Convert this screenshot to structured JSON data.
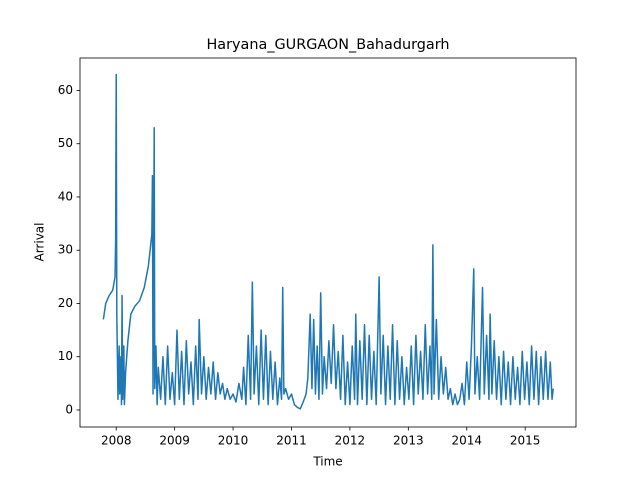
{
  "chart_data": {
    "type": "line",
    "title": "Haryana_GURGAON_Bahadurgarh",
    "x_label": "Time",
    "y_label": "Arrival",
    "series": [
      {
        "name": "Arrival",
        "color": "#1f77b4",
        "x": [
          2007.78,
          2007.82,
          2007.88,
          2007.94,
          2007.98,
          2007.99,
          2008.0,
          2008.01,
          2008.03,
          2008.05,
          2008.06,
          2008.08,
          2008.09,
          2008.1,
          2008.11,
          2008.13,
          2008.14,
          2008.16,
          2008.2,
          2008.25,
          2008.32,
          2008.4,
          2008.48,
          2008.55,
          2008.61,
          2008.62,
          2008.63,
          2008.65,
          2008.66,
          2008.68,
          2008.7,
          2008.72,
          2008.76,
          2008.8,
          2008.84,
          2008.88,
          2008.92,
          2008.96,
          2009.0,
          2009.04,
          2009.08,
          2009.12,
          2009.16,
          2009.2,
          2009.24,
          2009.28,
          2009.32,
          2009.36,
          2009.4,
          2009.42,
          2009.46,
          2009.5,
          2009.54,
          2009.58,
          2009.62,
          2009.66,
          2009.7,
          2009.74,
          2009.78,
          2009.82,
          2009.86,
          2009.9,
          2009.95,
          2010.0,
          2010.05,
          2010.1,
          2010.15,
          2010.18,
          2010.22,
          2010.26,
          2010.3,
          2010.33,
          2010.36,
          2010.4,
          2010.44,
          2010.48,
          2010.52,
          2010.56,
          2010.6,
          2010.64,
          2010.68,
          2010.72,
          2010.76,
          2010.8,
          2010.83,
          2010.85,
          2010.87,
          2010.9,
          2010.95,
          2011.0,
          2011.05,
          2011.1,
          2011.15,
          2011.2,
          2011.25,
          2011.28,
          2011.32,
          2011.35,
          2011.38,
          2011.41,
          2011.44,
          2011.47,
          2011.5,
          2011.53,
          2011.56,
          2011.6,
          2011.64,
          2011.68,
          2011.72,
          2011.76,
          2011.8,
          2011.84,
          2011.88,
          2011.92,
          2011.96,
          2012.0,
          2012.04,
          2012.08,
          2012.1,
          2012.13,
          2012.17,
          2012.21,
          2012.25,
          2012.29,
          2012.33,
          2012.37,
          2012.41,
          2012.45,
          2012.5,
          2012.53,
          2012.57,
          2012.61,
          2012.65,
          2012.69,
          2012.73,
          2012.77,
          2012.81,
          2012.85,
          2012.89,
          2012.93,
          2012.97,
          2013.01,
          2013.05,
          2013.09,
          2013.13,
          2013.17,
          2013.21,
          2013.25,
          2013.29,
          2013.33,
          2013.37,
          2013.4,
          2013.42,
          2013.44,
          2013.48,
          2013.52,
          2013.56,
          2013.6,
          2013.64,
          2013.68,
          2013.72,
          2013.76,
          2013.8,
          2013.84,
          2013.88,
          2013.92,
          2013.96,
          2014.0,
          2014.04,
          2014.08,
          2014.12,
          2014.14,
          2014.18,
          2014.22,
          2014.27,
          2014.3,
          2014.34,
          2014.38,
          2014.4,
          2014.43,
          2014.47,
          2014.51,
          2014.55,
          2014.59,
          2014.63,
          2014.67,
          2014.71,
          2014.75,
          2014.79,
          2014.83,
          2014.87,
          2014.91,
          2014.95,
          2014.99,
          2015.03,
          2015.07,
          2015.11,
          2015.15,
          2015.19,
          2015.23,
          2015.27,
          2015.31,
          2015.35,
          2015.39,
          2015.43,
          2015.46,
          2015.48
        ],
        "values": [
          17,
          20,
          21.5,
          22.5,
          25,
          32,
          63,
          18,
          2,
          12,
          3,
          10,
          1,
          21.5,
          2,
          12,
          1,
          7,
          13,
          18,
          19.5,
          20.5,
          23,
          27,
          33,
          44,
          3,
          53,
          4,
          12,
          1,
          8,
          2,
          10,
          1,
          12,
          2,
          7,
          1,
          15,
          2,
          11,
          1,
          13,
          3,
          9,
          1,
          12,
          2,
          17,
          3,
          10,
          2,
          8,
          3,
          9,
          2,
          7,
          3,
          5,
          2,
          4,
          2,
          3,
          1.5,
          5,
          2,
          8,
          1,
          14,
          2,
          24,
          3,
          12,
          1,
          15,
          2,
          14,
          1,
          11,
          2,
          9,
          1,
          6,
          2,
          23,
          3,
          4,
          2,
          3,
          1,
          0.5,
          0.2,
          1.5,
          3,
          6,
          18,
          4,
          17,
          3,
          12,
          2,
          22,
          3,
          10,
          4,
          13,
          5,
          16,
          4,
          11,
          2,
          14,
          1,
          9,
          1,
          12,
          2,
          18,
          1,
          13,
          2,
          16,
          1,
          14,
          2,
          11,
          1,
          25,
          3,
          14,
          1,
          12,
          2,
          16,
          1,
          13,
          2,
          10,
          1,
          8,
          2,
          12,
          1,
          14,
          3,
          11,
          2,
          16,
          3,
          12,
          2,
          31,
          3,
          17,
          2,
          10,
          3,
          8,
          2,
          4,
          1,
          3,
          1,
          2,
          5,
          1,
          9,
          2,
          12,
          26.5,
          3,
          10,
          2,
          23,
          3,
          14,
          2,
          18,
          3,
          13,
          2,
          10,
          1,
          11,
          2,
          9,
          1,
          10,
          2,
          8,
          1,
          11,
          2,
          9,
          1,
          12,
          2,
          11,
          1,
          10,
          2,
          11,
          2,
          9,
          2,
          4
        ]
      }
    ],
    "xlim": [
      2007.38,
      2015.87
    ],
    "xticks": [
      2008,
      2009,
      2010,
      2011,
      2012,
      2013,
      2014,
      2015
    ],
    "ylim": [
      -3.2,
      66.1
    ],
    "yticks": [
      0,
      10,
      20,
      30,
      40,
      50,
      60
    ]
  }
}
